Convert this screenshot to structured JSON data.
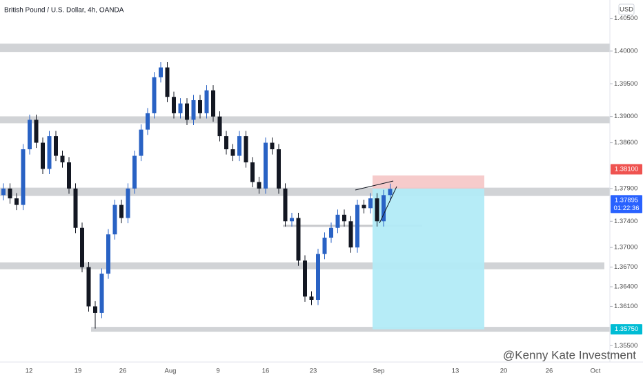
{
  "chart_data": {
    "type": "candlestick",
    "title": "British Pound / U.S. Dollar, 4h, OANDA",
    "currency": "USD",
    "watermark": "@Kenny Kate Investment",
    "categories": [
      "12",
      "19",
      "26",
      "Aug",
      "9",
      "16",
      "23",
      "Sep",
      "13",
      "20",
      "26",
      "Oct"
    ],
    "up_color": "#2962c4",
    "down_color": "#131722",
    "open": [
      1.378,
      1.379,
      1.3775,
      1.3765,
      1.385,
      1.3895,
      1.386,
      1.382,
      1.387,
      1.384,
      1.383,
      1.379,
      1.373,
      1.367,
      1.361,
      1.36,
      1.366,
      1.372,
      1.3765,
      1.3745,
      1.379,
      1.384,
      1.388,
      1.3905,
      1.396,
      1.3975,
      1.393,
      1.3905,
      1.392,
      1.3895,
      1.3925,
      1.3905,
      1.394,
      1.39,
      1.387,
      1.385,
      1.384,
      1.387,
      1.383,
      1.38,
      1.379,
      1.386,
      1.385,
      1.379,
      1.374,
      1.3745,
      1.368,
      1.3625,
      1.362,
      1.369,
      1.3715,
      1.373,
      1.375,
      1.374,
      1.37,
      1.3765,
      1.376,
      1.3775,
      1.374,
      1.378
    ],
    "high": [
      1.3798,
      1.3798,
      1.3783,
      1.3858,
      1.3903,
      1.3903,
      1.3868,
      1.3878,
      1.3878,
      1.3848,
      1.3838,
      1.3798,
      1.3738,
      1.3678,
      1.3618,
      1.3668,
      1.3728,
      1.3773,
      1.3773,
      1.3798,
      1.3848,
      1.3888,
      1.3913,
      1.3968,
      1.3983,
      1.3983,
      1.3938,
      1.3928,
      1.3928,
      1.3933,
      1.3933,
      1.3948,
      1.3948,
      1.3908,
      1.3878,
      1.3858,
      1.3878,
      1.3878,
      1.3838,
      1.3808,
      1.3868,
      1.3868,
      1.3858,
      1.3798,
      1.3753,
      1.3753,
      1.3688,
      1.3633,
      1.3698,
      1.3723,
      1.3738,
      1.3758,
      1.3758,
      1.3748,
      1.3773,
      1.3773,
      1.3783,
      1.3783,
      1.3788,
      1.37975
    ],
    "low": [
      1.3772,
      1.3767,
      1.3757,
      1.3757,
      1.3842,
      1.3852,
      1.3812,
      1.3812,
      1.3832,
      1.3822,
      1.3782,
      1.3722,
      1.3662,
      1.3602,
      1.3576,
      1.3592,
      1.3652,
      1.3712,
      1.3737,
      1.3737,
      1.3782,
      1.3832,
      1.3872,
      1.3897,
      1.3952,
      1.3922,
      1.3897,
      1.3897,
      1.3887,
      1.3887,
      1.3897,
      1.3897,
      1.3892,
      1.3862,
      1.3842,
      1.3832,
      1.3832,
      1.3822,
      1.3792,
      1.3782,
      1.3782,
      1.3842,
      1.3782,
      1.3732,
      1.3732,
      1.3672,
      1.3617,
      1.3612,
      1.3612,
      1.3682,
      1.3707,
      1.3722,
      1.3732,
      1.3692,
      1.3692,
      1.3752,
      1.3752,
      1.3732,
      1.3732,
      1.3772
    ],
    "close": [
      1.379,
      1.3775,
      1.3765,
      1.385,
      1.3895,
      1.386,
      1.382,
      1.387,
      1.384,
      1.383,
      1.379,
      1.373,
      1.367,
      1.361,
      1.36,
      1.366,
      1.372,
      1.3765,
      1.3745,
      1.379,
      1.384,
      1.388,
      1.3905,
      1.396,
      1.3975,
      1.393,
      1.3905,
      1.392,
      1.3895,
      1.3925,
      1.3905,
      1.394,
      1.39,
      1.387,
      1.385,
      1.384,
      1.387,
      1.383,
      1.38,
      1.379,
      1.386,
      1.385,
      1.379,
      1.374,
      1.3745,
      1.368,
      1.3625,
      1.362,
      1.369,
      1.3715,
      1.373,
      1.375,
      1.374,
      1.37,
      1.3765,
      1.376,
      1.3775,
      1.374,
      1.378,
      1.37895
    ],
    "zones": [
      1.4005,
      1.3895,
      1.3785,
      1.3672,
      1.3575
    ],
    "support_line": 1.3733,
    "position": {
      "stop": 1.381,
      "entry": 1.379,
      "target": 1.3575,
      "stop_color": "#f4c2c2",
      "target_color": "#b2ebf7"
    },
    "ylim": [
      1.3525,
      1.4078
    ],
    "yticks": [
      {
        "value": 1.405,
        "label": "1.40500"
      },
      {
        "value": 1.4,
        "label": "1.40000"
      },
      {
        "value": 1.395,
        "label": "1.39500"
      },
      {
        "value": 1.39,
        "label": "1.39000"
      },
      {
        "value": 1.386,
        "label": "1.38600"
      },
      {
        "value": 1.379,
        "label": "1.37900"
      },
      {
        "value": 1.374,
        "label": "1.37400"
      },
      {
        "value": 1.37,
        "label": "1.37000"
      },
      {
        "value": 1.367,
        "label": "1.36700"
      },
      {
        "value": 1.364,
        "label": "1.36400"
      },
      {
        "value": 1.361,
        "label": "1.36100"
      },
      {
        "value": 1.355,
        "label": "1.35500"
      }
    ],
    "price_tags": [
      {
        "value": 1.381,
        "label": "1.38100",
        "color": "#ef5350"
      },
      {
        "value": 1.37895,
        "label": "1.37895",
        "countdown": "01:22:36",
        "color": "#2962ff"
      },
      {
        "value": 1.3575,
        "label": "1.35750",
        "color": "#00bcd4"
      }
    ]
  }
}
